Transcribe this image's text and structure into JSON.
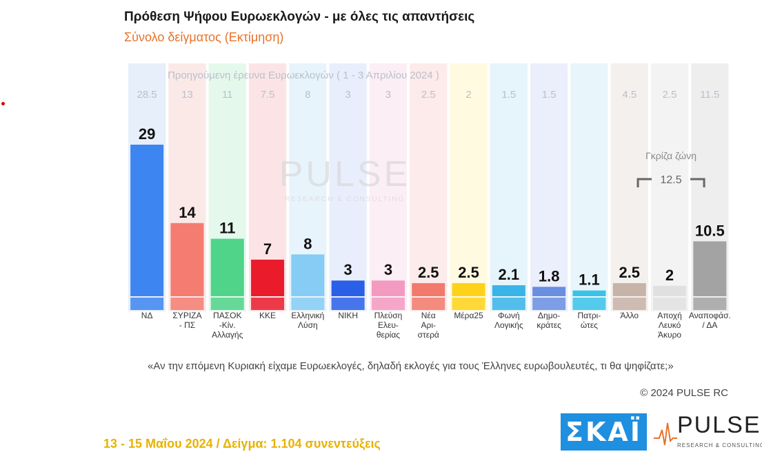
{
  "header": {
    "title": "Πρόθεση Ψήφου Ευρωεκλογών - με όλες τις απαντήσεις",
    "subtitle": "Σύνολο δείγματος   (Εκτίμηση)"
  },
  "chart_data": {
    "type": "bar",
    "previous_survey_label": "Προηγούμενη έρευνα Ευρωεκλογών ( 1 - 3 Απριλίου 2024 )",
    "categories": [
      "ΝΔ",
      "ΣΥΡΙΖΑ - ΠΣ",
      "ΠΑΣΟΚ -Κίν. Αλλαγής",
      "ΚΚΕ",
      "Ελληνική Λύση",
      "ΝΙΚΗ",
      "Πλεύση Ελευ- θερίας",
      "Νέα Αρι- στερά",
      "Μέρα25",
      "Φωνή Λογικής",
      "Δημο- κράτες",
      "Πατρι- ώτες",
      "Άλλο",
      "Αποχή Λευκό Άκυρο",
      "Αναποφάσ. / ΔΑ"
    ],
    "values": [
      29,
      14,
      11,
      7,
      8,
      3,
      3,
      2.5,
      2.5,
      2.1,
      1.8,
      1.1,
      2.5,
      2,
      10.5
    ],
    "value_labels": [
      "29",
      "14",
      "11",
      "7",
      "8",
      "3",
      "3",
      "2.5",
      "2.5",
      "2.1",
      "1.8",
      "1.1",
      "2.5",
      "2",
      "10.5"
    ],
    "previous_values": [
      28.5,
      13,
      11,
      7.5,
      8,
      3,
      3,
      2.5,
      2,
      1.5,
      1.5,
      null,
      4.5,
      2.5,
      11.5
    ],
    "previous_labels": [
      "28.5",
      "13",
      "11",
      "7.5",
      "8",
      "3",
      "3",
      "2.5",
      "2",
      "1.5",
      "1.5",
      "",
      "4.5",
      "2.5",
      "11.5"
    ],
    "colors": [
      "#3d85f0",
      "#f47c70",
      "#50d48a",
      "#ea1c2c",
      "#86ccf4",
      "#2a5fe8",
      "#f29ac0",
      "#f27a6c",
      "#ffd21a",
      "#38b4e8",
      "#6a8ee0",
      "#3ac2ea",
      "#c7b3a8",
      "#e0e0e0",
      "#a3a3a3"
    ],
    "column_backgrounds": [
      "#e7effb",
      "#fbe9e8",
      "#e5f8ec",
      "#fce4e6",
      "#e8f4fc",
      "#e8eefc",
      "#fceef5",
      "#fcebea",
      "#fffae0",
      "#e6f4fb",
      "#ebeffc",
      "#e8f6fc",
      "#f4f0ee",
      "#f3f3f3",
      "#eeeeee"
    ],
    "grey_zone": {
      "label": "Γκρίζα ζώνη",
      "value_label": "12.5"
    },
    "ylim": [
      0,
      32
    ]
  },
  "footer": {
    "question": "«Αν την επόμενη Κυριακή είχαμε Ευρωεκλογές, δηλαδή εκλογές για τους Έλληνες ευρωβουλευτές, τι θα ψηφίζατε;»",
    "copyright": "© 2024 PULSE RC",
    "fieldwork": "13 - 15  Μαΐου  2024  /  Δείγμα:  1.104 συνεντεύξεις"
  },
  "logos": {
    "skai": "ΣΚΑΪ",
    "pulse": "PULSE",
    "pulse_sub": "RESEARCH & CONSULTING",
    "watermark": "PULSE",
    "watermark_sub": "RESEARCH & CONSULTING"
  }
}
